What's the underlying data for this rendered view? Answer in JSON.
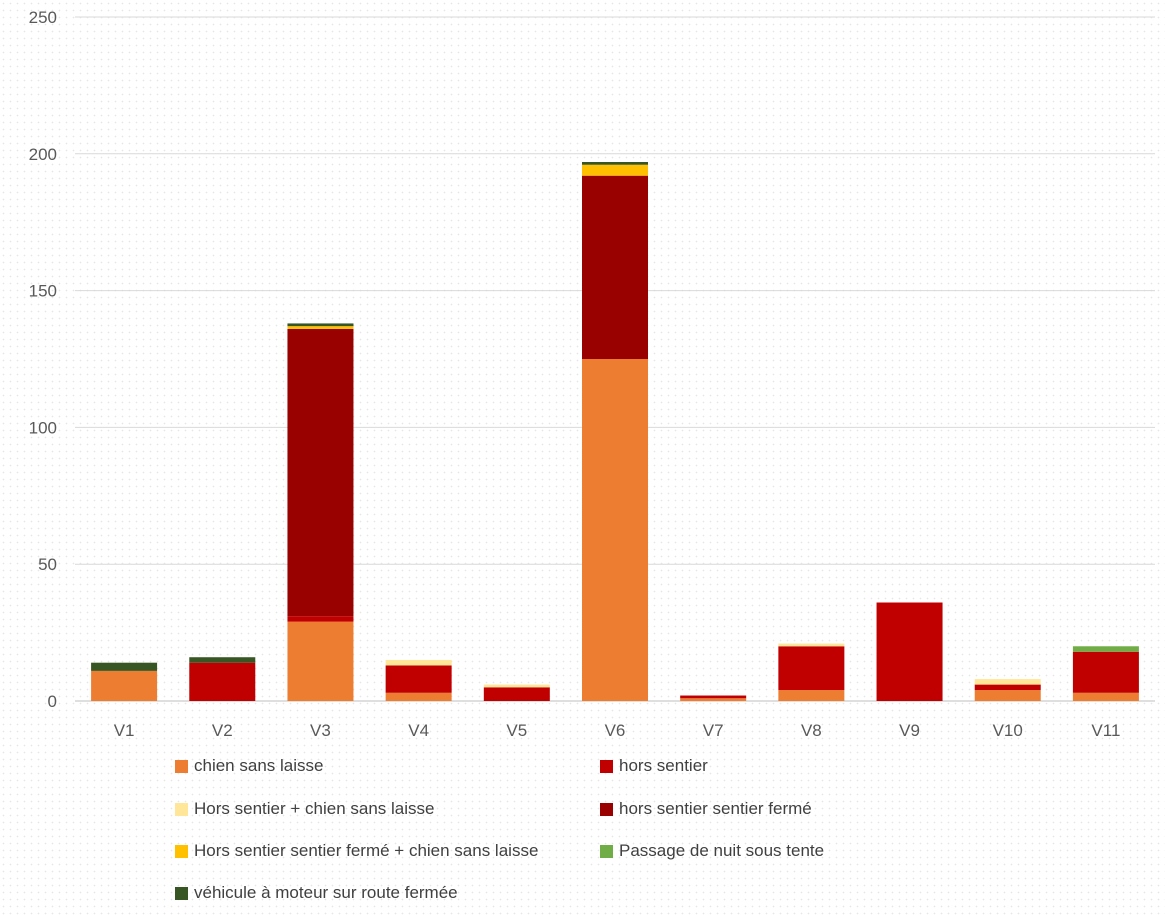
{
  "chart_data": {
    "type": "bar",
    "stacked": true,
    "title": "",
    "xlabel": "",
    "ylabel": "",
    "categories": [
      "V1",
      "V2",
      "V3",
      "V4",
      "V5",
      "V6",
      "V7",
      "V8",
      "V9",
      "V10",
      "V11"
    ],
    "ylim": [
      0,
      250
    ],
    "yticks": [
      0,
      50,
      100,
      150,
      200,
      250
    ],
    "grid": true,
    "legend_position": "bottom",
    "series": [
      {
        "name": "chien sans laisse",
        "color": "#ED7D31",
        "values": [
          11,
          0,
          29,
          3,
          0,
          125,
          1,
          4,
          0,
          4,
          3
        ]
      },
      {
        "name": "hors sentier",
        "color": "#C00000",
        "values": [
          0,
          14,
          2,
          10,
          5,
          0,
          1,
          16,
          36,
          2,
          15
        ]
      },
      {
        "name": "Hors sentier + chien sans laisse",
        "color": "#FFE699",
        "values": [
          0,
          0,
          0,
          2,
          1,
          0,
          0,
          1,
          0,
          2,
          0
        ]
      },
      {
        "name": "hors sentier sentier fermé",
        "color": "#990000",
        "values": [
          0,
          0,
          105,
          0,
          0,
          67,
          0,
          0,
          0,
          0,
          0
        ]
      },
      {
        "name": "Hors sentier sentier fermé + chien sans laisse",
        "color": "#FFC000",
        "values": [
          0,
          0,
          1,
          0,
          0,
          4,
          0,
          0,
          0,
          0,
          0
        ]
      },
      {
        "name": "Passage de nuit sous tente",
        "color": "#70AD47",
        "values": [
          0,
          0,
          0,
          0,
          0,
          0,
          0,
          0,
          0,
          0,
          2
        ]
      },
      {
        "name": "véhicule à moteur sur route fermée",
        "color": "#375623",
        "values": [
          3,
          2,
          1,
          0,
          0,
          1,
          0,
          0,
          0,
          0,
          0
        ]
      }
    ]
  }
}
